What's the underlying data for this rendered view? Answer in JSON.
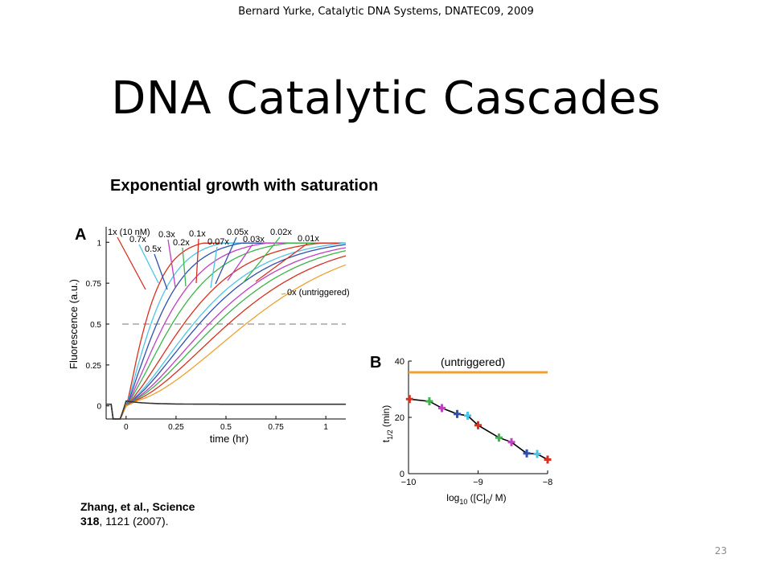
{
  "slide": {
    "credit": "Bernard Yurke, Catalytic DNA Systems, DNATEC09, 2009",
    "title": "DNA Catalytic Cascades",
    "figure_title": "Exponential growth with saturation",
    "citation_line1": "Zhang,  et al., Science",
    "citation_volume": "318",
    "citation_rest": ", 1121 (2007).",
    "page_number": "23"
  },
  "chart_data": [
    {
      "panel": "A",
      "type": "line",
      "xlabel": "time (hr)",
      "ylabel": "Fluorescence (a.u.)",
      "xlim": [
        -0.1,
        1.1
      ],
      "ylim": [
        -0.08,
        1.08
      ],
      "xticks": [
        0,
        0.25,
        0.5,
        0.75,
        1
      ],
      "xtick_labels": [
        "0",
        "0.25",
        "0.5",
        "0.75",
        "1"
      ],
      "yticks": [
        0,
        0.25,
        0.5,
        0.75,
        1
      ],
      "ytick_labels": [
        "0",
        "0.25",
        "0.5",
        "0.75",
        "1"
      ],
      "reference_line": {
        "y": 0.5,
        "style": "dashed"
      },
      "series": [
        {
          "name": "1x (10 nM)",
          "color": "#d7301f",
          "t_half": 0.1
        },
        {
          "name": "0.7x",
          "color": "#4dc4e6",
          "t_half": 0.13
        },
        {
          "name": "0.5x",
          "color": "#3050b0",
          "t_half": 0.16
        },
        {
          "name": "0.3x",
          "color": "#c040c0",
          "t_half": 0.2
        },
        {
          "name": "0.2x",
          "color": "#3db34a",
          "t_half": 0.24
        },
        {
          "name": "0.1x",
          "color": "#d7301f",
          "t_half": 0.3
        },
        {
          "name": "0.07x",
          "color": "#4dc4e6",
          "t_half": 0.35
        },
        {
          "name": "0.05x",
          "color": "#3050b0",
          "t_half": 0.38
        },
        {
          "name": "0.03x",
          "color": "#c040c0",
          "t_half": 0.43
        },
        {
          "name": "0.02x",
          "color": "#3db34a",
          "t_half": 0.47
        },
        {
          "name": "0.01x",
          "color": "#d7301f",
          "t_half": 0.53
        },
        {
          "name": "0x (untriggered)",
          "color": "#f0a030",
          "t_half": 0.62
        }
      ],
      "baseline_series": {
        "color": "#333333",
        "value": 0.01
      }
    },
    {
      "panel": "B",
      "type": "scatter",
      "xlabel": "log10 ([C]0 / M)",
      "ylabel": "t1/2 (min)",
      "xlim": [
        -10,
        -8
      ],
      "ylim": [
        0,
        40
      ],
      "xticks": [
        -10,
        -9,
        -8
      ],
      "xtick_labels": [
        "−10",
        "−9",
        "−8"
      ],
      "yticks": [
        0,
        20,
        40
      ],
      "ytick_labels": [
        "0",
        "20",
        "40"
      ],
      "reference_line": {
        "label": "(untriggered)",
        "y": 36,
        "color": "#f0a030"
      },
      "x": [
        -9.985,
        -9.7,
        -9.52,
        -9.3,
        -9.15,
        -9.0,
        -8.7,
        -8.52,
        -8.3,
        -8.15,
        -8.0
      ],
      "y": [
        26.5,
        25.7,
        23.3,
        21.2,
        20.6,
        17.2,
        12.8,
        11.2,
        7.2,
        7.0,
        5.0
      ],
      "point_colors": [
        "#d7301f",
        "#3db34a",
        "#c040c0",
        "#3050b0",
        "#4dc4e6",
        "#d7301f",
        "#3db34a",
        "#c040c0",
        "#3050b0",
        "#4dc4e6",
        "#d7301f"
      ]
    }
  ]
}
